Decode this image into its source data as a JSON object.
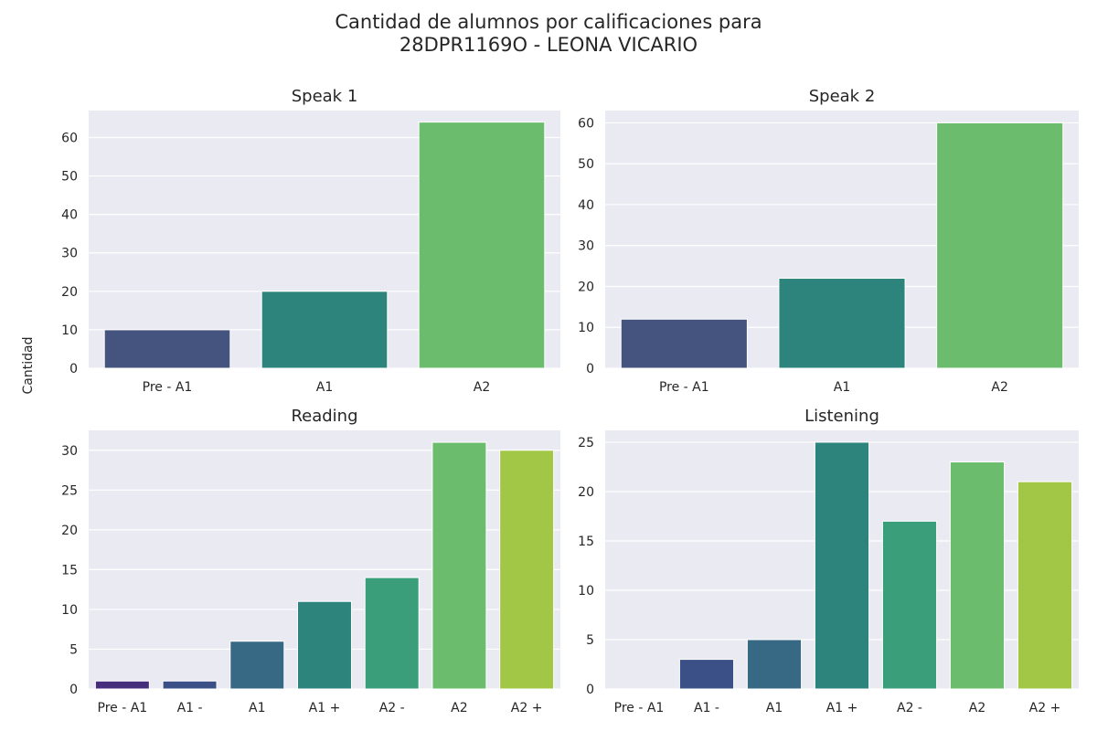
{
  "figure": {
    "title_line1": "Cantidad de alumnos por calificaciones para",
    "title_line2": "28DPR1169O - LEONA VICARIO",
    "ylabel": "Cantidad"
  },
  "chart_data": [
    {
      "type": "bar",
      "title": "Speak 1",
      "categories": [
        "Pre - A1",
        "A1",
        "A2"
      ],
      "values": [
        10,
        20,
        64
      ],
      "colors": [
        "#45537f",
        "#2d847d",
        "#6bbd6d"
      ],
      "ylim": [
        0,
        67
      ],
      "yticks": [
        0,
        10,
        20,
        30,
        40,
        50,
        60
      ],
      "grid": true
    },
    {
      "type": "bar",
      "title": "Speak 2",
      "categories": [
        "Pre - A1",
        "A1",
        "A2"
      ],
      "values": [
        12,
        22,
        60
      ],
      "colors": [
        "#45537f",
        "#2d847d",
        "#6bbd6d"
      ],
      "ylim": [
        0,
        63
      ],
      "yticks": [
        0,
        10,
        20,
        30,
        40,
        50,
        60
      ],
      "grid": true
    },
    {
      "type": "bar",
      "title": "Reading",
      "categories": [
        "Pre - A1",
        "A1 -",
        "A1",
        "A1 +",
        "A2 -",
        "A2",
        "A2 +"
      ],
      "values": [
        1,
        1,
        6,
        11,
        14,
        31,
        30
      ],
      "colors": [
        "#472e7c",
        "#3b5086",
        "#376985",
        "#2d847d",
        "#3a9e7b",
        "#6bbd6d",
        "#a2c645"
      ],
      "ylim": [
        0,
        32.5
      ],
      "yticks": [
        0,
        5,
        10,
        15,
        20,
        25,
        30
      ],
      "grid": true
    },
    {
      "type": "bar",
      "title": "Listening",
      "categories": [
        "Pre - A1",
        "A1 -",
        "A1",
        "A1 +",
        "A2 -",
        "A2",
        "A2 +"
      ],
      "values": [
        0,
        3,
        5,
        25,
        17,
        23,
        21
      ],
      "colors": [
        "#472e7c",
        "#3b5086",
        "#376985",
        "#2d847d",
        "#3a9e7b",
        "#6bbd6d",
        "#a2c645"
      ],
      "ylim": [
        0,
        26.2
      ],
      "yticks": [
        0,
        5,
        10,
        15,
        20,
        25
      ],
      "grid": true
    }
  ]
}
